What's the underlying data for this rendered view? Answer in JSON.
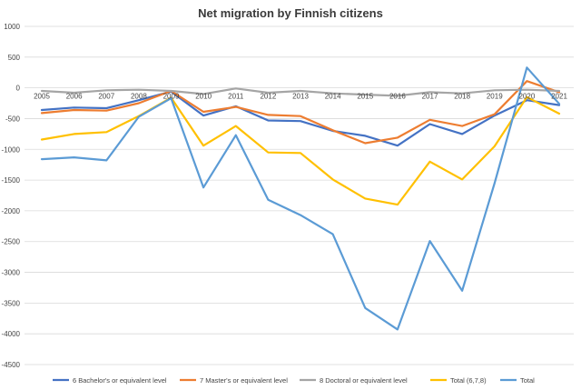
{
  "chart_data": {
    "type": "line",
    "title": "Net migration by Finnish citizens",
    "xlabel": "",
    "ylabel": "",
    "categories": [
      "2005",
      "2006",
      "2007",
      "2008",
      "2009",
      "2010",
      "2011",
      "2012",
      "2013",
      "2014",
      "2015",
      "2016",
      "2017",
      "2018",
      "2019",
      "2020",
      "2021"
    ],
    "ylim": [
      -4500,
      1000
    ],
    "yticks": [
      1000,
      500,
      0,
      -500,
      -1000,
      -1500,
      -2000,
      -2500,
      -3000,
      -3500,
      -4000,
      -4500
    ],
    "grid": true,
    "legend_position": "bottom",
    "series": [
      {
        "name": "6 Bachelor's or equivalent level",
        "color": "#4472C4",
        "values": [
          -360,
          -320,
          -330,
          -200,
          -60,
          -450,
          -300,
          -530,
          -540,
          -700,
          -780,
          -940,
          -590,
          -750,
          -450,
          -200,
          -280
        ]
      },
      {
        "name": "7 Master's or equivalent level",
        "color": "#ED7D31",
        "values": [
          -410,
          -360,
          -370,
          -250,
          -50,
          -390,
          -310,
          -440,
          -460,
          -690,
          -900,
          -810,
          -520,
          -620,
          -430,
          110,
          -70
        ]
      },
      {
        "name": "8 Doctoral or equivalent level",
        "color": "#A5A5A5",
        "values": [
          -50,
          -80,
          -40,
          -30,
          -50,
          -100,
          -10,
          -80,
          -50,
          -90,
          -110,
          -130,
          -70,
          -90,
          -40,
          -30,
          -50
        ]
      },
      {
        "name": "Total (6,7,8)",
        "color": "#FFC000",
        "values": [
          -840,
          -750,
          -720,
          -460,
          -160,
          -940,
          -620,
          -1050,
          -1060,
          -1490,
          -1800,
          -1900,
          -1200,
          -1490,
          -950,
          -150,
          -420
        ]
      },
      {
        "name": "Total",
        "color": "#5B9BD5",
        "values": [
          -1160,
          -1130,
          -1180,
          -470,
          -170,
          -1620,
          -770,
          -1820,
          -2070,
          -2380,
          -3580,
          -3930,
          -2490,
          -3300,
          -1550,
          330,
          -260
        ]
      }
    ]
  }
}
